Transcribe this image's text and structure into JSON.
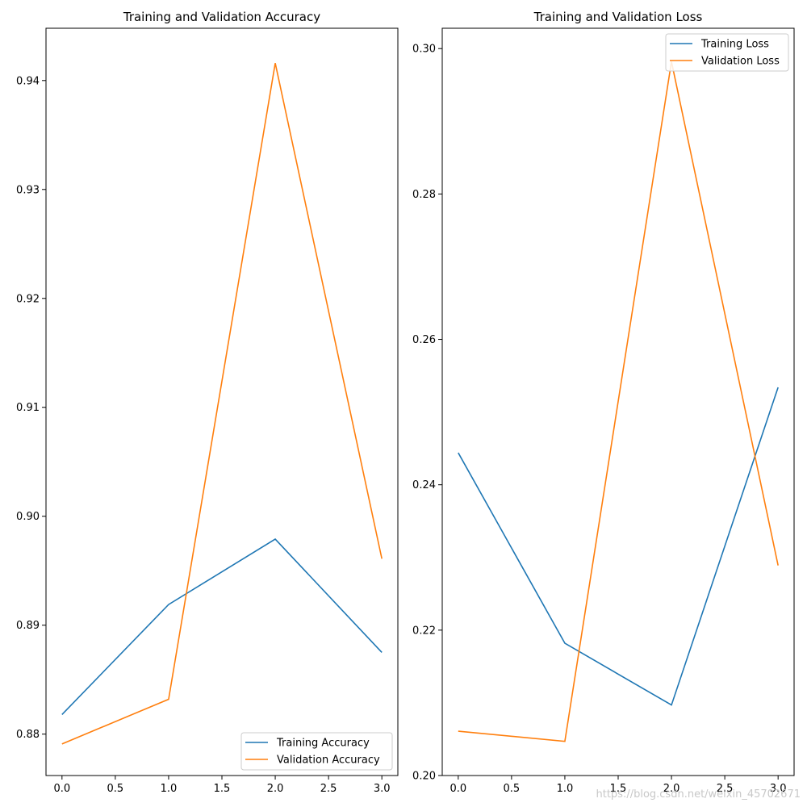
{
  "chart_data": [
    {
      "type": "line",
      "title": "Training and Validation Accuracy",
      "xlabel": "",
      "ylabel": "",
      "x": [
        0,
        1,
        2,
        3
      ],
      "xlim": [
        -0.15,
        3.15
      ],
      "ylim": [
        0.8762,
        0.9448
      ],
      "xticks": [
        0.0,
        0.5,
        1.0,
        1.5,
        2.0,
        2.5,
        3.0
      ],
      "xtick_labels": [
        "0.0",
        "0.5",
        "1.0",
        "1.5",
        "2.0",
        "2.5",
        "3.0"
      ],
      "yticks": [
        0.88,
        0.89,
        0.9,
        0.91,
        0.92,
        0.93,
        0.94
      ],
      "ytick_labels": [
        "0.88",
        "0.89",
        "0.90",
        "0.91",
        "0.92",
        "0.93",
        "0.94"
      ],
      "legend_position": "lower-right",
      "series": [
        {
          "name": "Training Accuracy",
          "color": "#1f77b4",
          "values": [
            0.8818,
            0.8919,
            0.8979,
            0.8875
          ]
        },
        {
          "name": "Validation Accuracy",
          "color": "#ff7f0e",
          "values": [
            0.8791,
            0.8832,
            0.9416,
            0.8961
          ]
        }
      ]
    },
    {
      "type": "line",
      "title": "Training and Validation Loss",
      "xlabel": "",
      "ylabel": "",
      "x": [
        0,
        1,
        2,
        3
      ],
      "xlim": [
        -0.15,
        3.15
      ],
      "ylim": [
        0.2,
        0.3028
      ],
      "xticks": [
        0.0,
        0.5,
        1.0,
        1.5,
        2.0,
        2.5,
        3.0
      ],
      "xtick_labels": [
        "0.0",
        "0.5",
        "1.0",
        "1.5",
        "2.0",
        "2.5",
        "3.0"
      ],
      "yticks": [
        0.2,
        0.22,
        0.24,
        0.26,
        0.28,
        0.3
      ],
      "ytick_labels": [
        "0.20",
        "0.22",
        "0.24",
        "0.26",
        "0.28",
        "0.30"
      ],
      "legend_position": "upper-right",
      "series": [
        {
          "name": "Training Loss",
          "color": "#1f77b4",
          "values": [
            0.2444,
            0.2182,
            0.2097,
            0.2534
          ]
        },
        {
          "name": "Validation Loss",
          "color": "#ff7f0e",
          "values": [
            0.2061,
            0.2047,
            0.2982,
            0.2289
          ]
        }
      ]
    }
  ],
  "watermark": "https://blog.csdn.net/weixin_45702671"
}
